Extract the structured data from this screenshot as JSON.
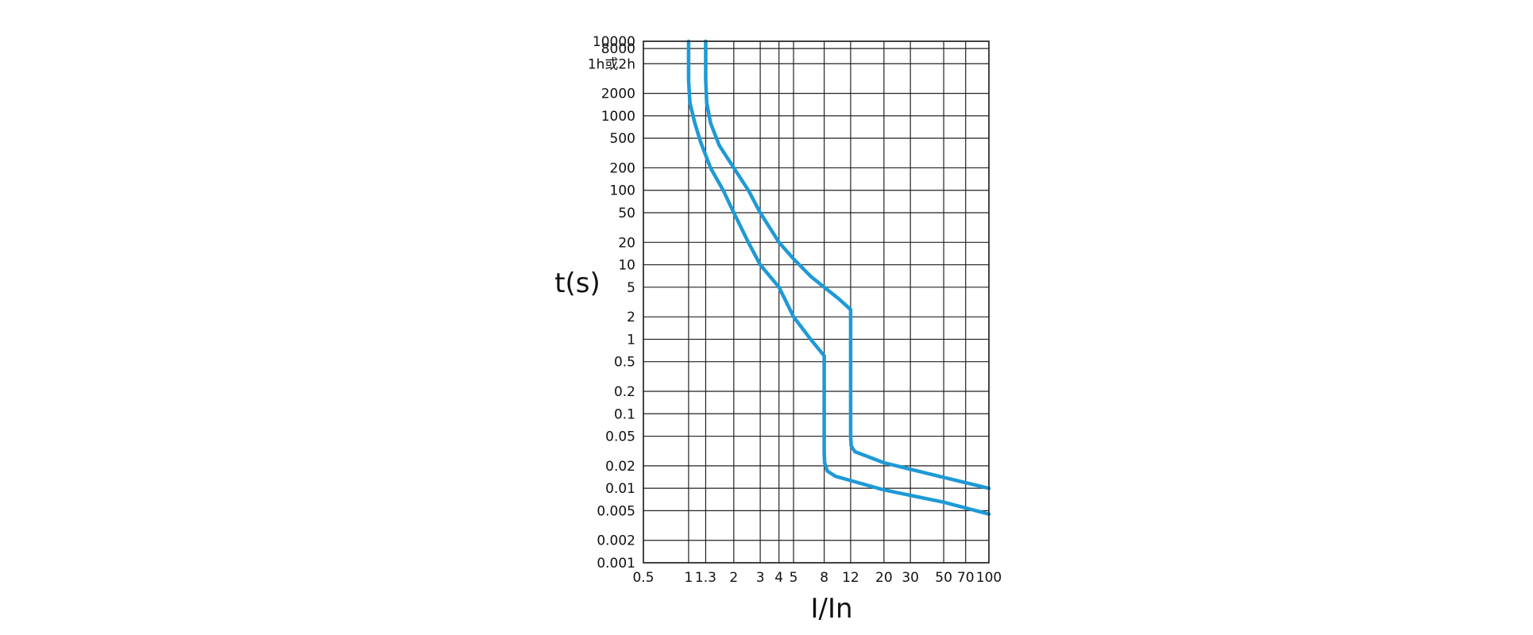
{
  "chart_data": {
    "type": "line",
    "title": "",
    "xlabel": "I/In",
    "ylabel": "t(s)",
    "x_scale": "log",
    "y_scale": "log",
    "xlim": [
      0.5,
      100
    ],
    "ylim": [
      0.001,
      10000
    ],
    "grid": true,
    "x_ticks": [
      {
        "value": 0.5,
        "label": "0.5"
      },
      {
        "value": 1,
        "label": "1"
      },
      {
        "value": 1.3,
        "label": "1.3"
      },
      {
        "value": 2,
        "label": "2"
      },
      {
        "value": 3,
        "label": "3"
      },
      {
        "value": 4,
        "label": "4"
      },
      {
        "value": 5,
        "label": "5"
      },
      {
        "value": 8,
        "label": "8"
      },
      {
        "value": 12,
        "label": "12"
      },
      {
        "value": 20,
        "label": "20"
      },
      {
        "value": 30,
        "label": "30"
      },
      {
        "value": 50,
        "label": "50"
      },
      {
        "value": 70,
        "label": "70"
      },
      {
        "value": 100,
        "label": "100"
      }
    ],
    "y_ticks": [
      {
        "value": 10000,
        "label": "10000"
      },
      {
        "value": 8000,
        "label": "8000"
      },
      {
        "value": 5000,
        "label": "1h或2h"
      },
      {
        "value": 2000,
        "label": "2000"
      },
      {
        "value": 1000,
        "label": "1000"
      },
      {
        "value": 500,
        "label": "500"
      },
      {
        "value": 200,
        "label": "200"
      },
      {
        "value": 100,
        "label": "100"
      },
      {
        "value": 50,
        "label": "50"
      },
      {
        "value": 20,
        "label": "20"
      },
      {
        "value": 10,
        "label": "10"
      },
      {
        "value": 5,
        "label": "5"
      },
      {
        "value": 2,
        "label": "2"
      },
      {
        "value": 1,
        "label": "1"
      },
      {
        "value": 0.5,
        "label": "0.5"
      },
      {
        "value": 0.2,
        "label": "0.2"
      },
      {
        "value": 0.1,
        "label": "0.1"
      },
      {
        "value": 0.05,
        "label": "0.05"
      },
      {
        "value": 0.02,
        "label": "0.02"
      },
      {
        "value": 0.01,
        "label": "0.01"
      },
      {
        "value": 0.005,
        "label": "0.005"
      },
      {
        "value": 0.002,
        "label": "0.002"
      },
      {
        "value": 0.001,
        "label": "0.001"
      }
    ],
    "series": [
      {
        "color": "#1e9ad6",
        "points": [
          [
            1.0,
            10000
          ],
          [
            1.0,
            3000
          ],
          [
            1.02,
            1500
          ],
          [
            1.1,
            800
          ],
          [
            1.2,
            450
          ],
          [
            1.4,
            200
          ],
          [
            1.7,
            100
          ],
          [
            2.0,
            50
          ],
          [
            2.5,
            20
          ],
          [
            3.0,
            10
          ],
          [
            4.0,
            5
          ],
          [
            5.0,
            2
          ],
          [
            6.5,
            1
          ],
          [
            8.0,
            0.6
          ],
          [
            8.0,
            0.5
          ],
          [
            8.0,
            0.1
          ],
          [
            8.0,
            0.03
          ],
          [
            8.05,
            0.022
          ],
          [
            8.4,
            0.017
          ],
          [
            9.5,
            0.0145
          ],
          [
            20.0,
            0.0095
          ],
          [
            50.0,
            0.0065
          ],
          [
            100.0,
            0.0045
          ]
        ]
      },
      {
        "color": "#1e9ad6",
        "points": [
          [
            1.3,
            10000
          ],
          [
            1.3,
            3000
          ],
          [
            1.32,
            1500
          ],
          [
            1.4,
            800
          ],
          [
            1.6,
            400
          ],
          [
            2.0,
            200
          ],
          [
            2.5,
            100
          ],
          [
            3.0,
            50
          ],
          [
            4.0,
            20
          ],
          [
            5.0,
            12
          ],
          [
            6.5,
            7
          ],
          [
            8.0,
            5
          ],
          [
            10.0,
            3.5
          ],
          [
            12.0,
            2.5
          ],
          [
            12.0,
            2.0
          ],
          [
            12.0,
            0.5
          ],
          [
            12.0,
            0.05
          ],
          [
            12.1,
            0.037
          ],
          [
            12.8,
            0.031
          ],
          [
            20.0,
            0.022
          ],
          [
            50.0,
            0.014
          ],
          [
            100.0,
            0.01
          ]
        ]
      }
    ]
  }
}
